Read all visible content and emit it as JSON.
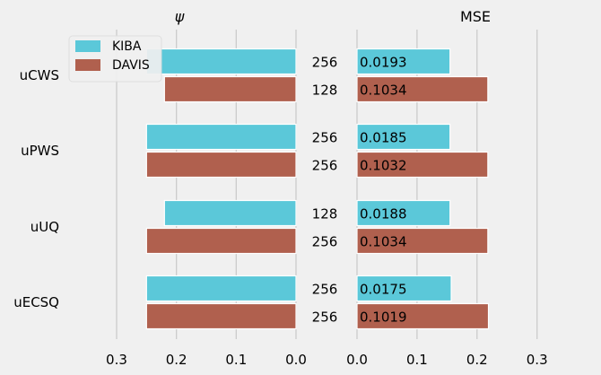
{
  "chart_data": [
    {
      "type": "bar",
      "orientation": "horizontal",
      "title": "ψ",
      "x_inverted": true,
      "xlim": [
        0.35,
        0
      ],
      "xticks": [
        "0.3",
        "0.2",
        "0.1",
        "0.0"
      ],
      "xtick_values": [
        0.3,
        0.2,
        0.1,
        0.0
      ],
      "categories": [
        "uCWS",
        "uPWS",
        "uUQ",
        "uECSQ"
      ],
      "series": [
        {
          "name": "KIBA",
          "color": "#5bc8d9",
          "values": [
            0.25,
            0.25,
            0.22,
            0.25
          ],
          "annotations": [
            "256",
            "256",
            "128",
            "256"
          ]
        },
        {
          "name": "DAVIS",
          "color": "#b0604e",
          "values": [
            0.22,
            0.25,
            0.25,
            0.25
          ],
          "annotations": [
            "128",
            "256",
            "256",
            "256"
          ]
        }
      ],
      "legend": {
        "position": "top-left",
        "entries": [
          "KIBA",
          "DAVIS"
        ]
      },
      "grid": true
    },
    {
      "type": "bar",
      "orientation": "horizontal",
      "title": "MSE",
      "xlim": [
        0,
        0.35
      ],
      "xticks": [
        "0.0",
        "0.1",
        "0.2",
        "0.3"
      ],
      "xtick_values": [
        0.0,
        0.1,
        0.2,
        0.3
      ],
      "categories": [
        "uCWS",
        "uPWS",
        "uUQ",
        "uECSQ"
      ],
      "series": [
        {
          "name": "KIBA",
          "color": "#5bc8d9",
          "values": [
            0.155,
            0.155,
            0.155,
            0.157
          ],
          "annotations": [
            "0.0193",
            "0.0185",
            "0.0188",
            "0.0175"
          ]
        },
        {
          "name": "DAVIS",
          "color": "#b0604e",
          "values": [
            0.218,
            0.218,
            0.218,
            0.219
          ],
          "annotations": [
            "0.1034",
            "0.1032",
            "0.1034",
            "0.1019"
          ]
        }
      ],
      "grid": true
    }
  ]
}
